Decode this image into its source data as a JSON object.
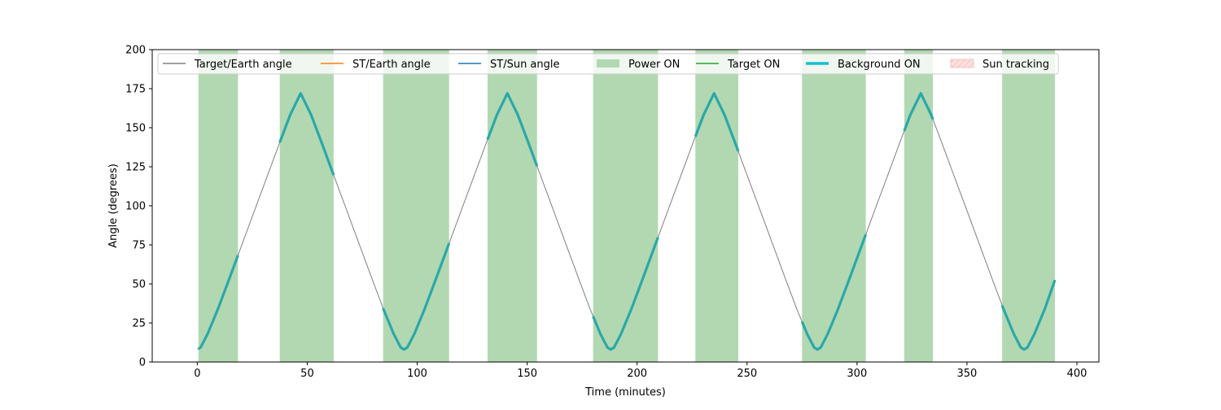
{
  "chart_data": {
    "type": "line",
    "title": "",
    "xlabel": "Time (minutes)",
    "ylabel": "Angle (degrees)",
    "xlim": [
      -20.5,
      410
    ],
    "ylim": [
      0,
      200
    ],
    "xticks": [
      0,
      50,
      100,
      150,
      200,
      250,
      300,
      350,
      400
    ],
    "yticks": [
      0,
      25,
      50,
      75,
      100,
      125,
      150,
      175,
      200
    ],
    "xtick_labels": [
      "0",
      "50",
      "100",
      "150",
      "200",
      "250",
      "300",
      "350",
      "400"
    ],
    "ytick_labels": [
      "0",
      "25",
      "50",
      "75",
      "100",
      "125",
      "150",
      "175",
      "200"
    ],
    "grid": false,
    "legend_position": "top",
    "legend": [
      {
        "label": "Target/Earth angle",
        "kind": "line",
        "color": "#808080"
      },
      {
        "label": "ST/Earth angle",
        "kind": "line",
        "color": "#ff7f0e"
      },
      {
        "label": "ST/Sun angle",
        "kind": "line",
        "color": "#1f77b4"
      },
      {
        "label": "Power ON",
        "kind": "patch",
        "color": "#b2d8b2"
      },
      {
        "label": "Target ON",
        "kind": "line",
        "color": "#2ca02c"
      },
      {
        "label": "Background ON",
        "kind": "thickline",
        "color": "#17becf"
      },
      {
        "label": "Sun tracking",
        "kind": "hatch",
        "color": "#f08080"
      }
    ],
    "series": [
      {
        "name": "Target/Earth angle",
        "color": "#808080",
        "x": [
          0,
          1.5,
          4.7,
          9.4,
          14.1,
          18.8,
          23.5,
          28.2,
          32.9,
          37.6,
          42.3,
          47,
          51.7,
          56.4,
          61.1,
          65.8,
          70.5,
          75.2,
          79.9,
          84.6,
          89.3,
          92.5,
          94,
          95.5,
          98.7,
          103.4,
          108.1,
          112.8,
          117.5,
          122.2,
          126.9,
          131.6,
          136.3,
          141,
          145.7,
          150.4,
          155.1,
          159.8,
          164.5,
          169.2,
          173.9,
          178.6,
          183.3,
          186.5,
          188,
          189.5,
          192.7,
          197.4,
          202.1,
          206.8,
          211.5,
          216.2,
          220.9,
          225.6,
          230.3,
          235,
          239.7,
          244.4,
          249.1,
          253.8,
          258.5,
          263.2,
          267.9,
          272.6,
          277.3,
          280.5,
          282,
          283.5,
          286.7,
          291.4,
          296.1,
          300.8,
          305.5,
          310.2,
          314.9,
          319.6,
          324.3,
          329,
          333.7,
          338.4,
          343.1,
          347.8,
          352.5,
          357.2,
          361.9,
          366.6,
          371.3,
          374.5,
          376,
          377.5,
          380.7,
          385.4,
          390
        ],
        "values": [
          8,
          9.3,
          18,
          34,
          51.6,
          69.5,
          87.4,
          105.3,
          123.1,
          141,
          158.4,
          172,
          158.4,
          141,
          123.1,
          105.3,
          87.4,
          69.5,
          51.6,
          34,
          18,
          9.3,
          8,
          9.3,
          18,
          34,
          51.6,
          69.5,
          87.4,
          105.3,
          123.1,
          141,
          158.4,
          172,
          158.4,
          141,
          123.1,
          105.3,
          87.4,
          69.5,
          51.6,
          34,
          18,
          9.3,
          8,
          9.3,
          18,
          34,
          51.6,
          69.5,
          87.4,
          105.3,
          123.1,
          141,
          158.4,
          172,
          158.4,
          141,
          123.1,
          105.3,
          87.4,
          69.5,
          51.6,
          34,
          18,
          9.3,
          8,
          9.3,
          18,
          34,
          51.6,
          69.5,
          87.4,
          105.3,
          123.1,
          141,
          158.4,
          172,
          158.4,
          141,
          123.1,
          105.3,
          87.4,
          69.5,
          51.6,
          34,
          18,
          9.3,
          8,
          9.3,
          18,
          34,
          52.5
        ]
      }
    ],
    "power_on_intervals": [
      [
        0.5,
        18.5
      ],
      [
        37.5,
        62
      ],
      [
        84.5,
        114.5
      ],
      [
        132,
        154.5
      ],
      [
        180,
        209.5
      ],
      [
        226.5,
        246
      ],
      [
        275,
        304
      ],
      [
        321.5,
        334.5
      ],
      [
        366,
        390
      ]
    ]
  }
}
